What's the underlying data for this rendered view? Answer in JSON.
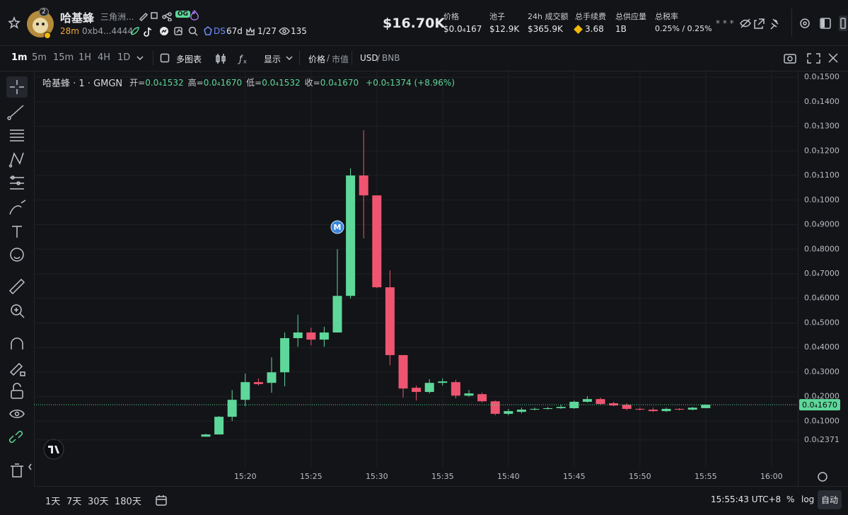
{
  "header": {
    "name": "哈基蜂",
    "subtitle": "三角洲...",
    "badge": "OG",
    "rank": "2",
    "age": "28m",
    "address": "0xb4...4444",
    "ds": "DS",
    "ds_age": "67d",
    "holders": "1/27",
    "views": "135",
    "market_cap": "$16.70K",
    "stats": [
      {
        "label": "价格",
        "value": "$0.0₄167"
      },
      {
        "label": "池子",
        "value": "$12.9K"
      },
      {
        "label": "24h 成交额",
        "value": "$365.9K"
      },
      {
        "label": "总手续费",
        "value": "3.68"
      },
      {
        "label": "总供应量",
        "value": "1B"
      },
      {
        "label": "总税率",
        "value": "0.25% / 0.25%"
      }
    ],
    "stars": "* * *"
  },
  "toolbar": {
    "intervals": [
      "1m",
      "5m",
      "15m",
      "1H",
      "4H",
      "1D"
    ],
    "multi_chart": "多图表",
    "display": "显示",
    "price": "价格",
    "sep": "/",
    "mcap": "市值",
    "usd": "USD",
    "bnb": "BNB"
  },
  "legend": {
    "symbol": "哈基蜂 · 1 · GMGN",
    "items": [
      {
        "label": "开=",
        "value": "0.0₄1532"
      },
      {
        "label": "高=",
        "value": "0.0₄1670"
      },
      {
        "label": "低=",
        "value": "0.0₄1532"
      },
      {
        "label": "收=",
        "value": "0.0₄1670"
      }
    ],
    "change": "+0.0₅1374 (+8.96%)"
  },
  "chart_data": {
    "type": "candlestick",
    "categories": [
      null,
      null,
      null,
      "15:20",
      null,
      null,
      null,
      null,
      "15:25",
      null,
      null,
      null,
      null,
      "15:30",
      null,
      null,
      null,
      null,
      "15:35",
      null,
      null,
      null,
      null,
      "15:40",
      null,
      null,
      null,
      null,
      "15:45",
      null,
      null,
      null,
      null,
      "15:50",
      null,
      null,
      null,
      null,
      "15:55",
      null,
      null,
      null,
      null,
      "16:00"
    ],
    "open": [
      3.7e-06,
      4.6e-06,
      1.18e-05,
      1.87e-05,
      2.59e-05,
      2.56e-05,
      2.99e-05,
      4.38e-05,
      4.61e-05,
      4.32e-05,
      4.61e-05,
      6.1e-05,
      0.00011,
      0.0001019,
      6.45e-05,
      3.69e-05,
      2.36e-05,
      2.19e-05,
      2.56e-05,
      2.59e-05,
      2.04e-05,
      2.1e-05,
      1.81e-05,
      1.3e-05,
      1.38e-05,
      1.47e-05,
      1.5e-05,
      1.53e-05,
      1.53e-05,
      1.79e-05,
      1.9e-05,
      1.73e-05,
      1.67e-05,
      1.5e-05,
      1.47e-05,
      1.41e-05,
      1.5e-05,
      1.47e-05,
      1.532e-05,
      null,
      null,
      null,
      null,
      null
    ],
    "high": [
      4.9e-06,
      1.21e-05,
      2.27e-05,
      2.94e-05,
      2.74e-05,
      3.6e-05,
      4.61e-05,
      5.33e-05,
      4.81e-05,
      4.84e-05,
      8e-05,
      0.0001129,
      0.0001284,
      0.0001019,
      7.14e-05,
      3.69e-05,
      2.45e-05,
      2.71e-05,
      2.74e-05,
      2.68e-05,
      2.27e-05,
      2.16e-05,
      1.84e-05,
      1.5e-05,
      1.55e-05,
      1.55e-05,
      1.58e-05,
      1.67e-05,
      1.84e-05,
      2.02e-05,
      1.96e-05,
      1.79e-05,
      1.73e-05,
      1.55e-05,
      1.55e-05,
      1.55e-05,
      1.53e-05,
      1.58e-05,
      1.67e-05,
      null,
      null,
      null,
      null,
      null
    ],
    "low": [
      3.7e-06,
      4.6e-06,
      1.01e-05,
      1.61e-05,
      2.45e-05,
      2.16e-05,
      2.42e-05,
      4.03e-05,
      4.09e-05,
      4.03e-05,
      4.61e-05,
      5.99e-05,
      8.44e-05,
      6.42e-05,
      3.28e-05,
      1.96e-05,
      1.84e-05,
      2.13e-05,
      2.45e-05,
      1.93e-05,
      1.99e-05,
      1.76e-05,
      1.24e-05,
      1.24e-05,
      1.32e-05,
      1.44e-05,
      1.47e-05,
      1.5e-05,
      1.5e-05,
      1.76e-05,
      1.67e-05,
      1.61e-05,
      1.44e-05,
      1.44e-05,
      1.38e-05,
      1.38e-05,
      1.44e-05,
      1.44e-05,
      1.532e-05,
      null,
      null,
      null,
      null,
      null
    ],
    "close": [
      4.6e-06,
      1.18e-05,
      1.87e-05,
      2.59e-05,
      2.51e-05,
      2.99e-05,
      4.38e-05,
      4.61e-05,
      4.32e-05,
      4.61e-05,
      6.1e-05,
      0.00011,
      0.0001019,
      6.45e-05,
      3.69e-05,
      2.33e-05,
      2.19e-05,
      2.56e-05,
      2.62e-05,
      2.04e-05,
      2.13e-05,
      1.81e-05,
      1.3e-05,
      1.41e-05,
      1.47e-05,
      1.5e-05,
      1.53e-05,
      1.58e-05,
      1.79e-05,
      1.9e-05,
      1.7e-05,
      1.64e-05,
      1.5e-05,
      1.47e-05,
      1.41e-05,
      1.5e-05,
      1.47e-05,
      1.55e-05,
      1.67e-05,
      null,
      null,
      null,
      null,
      null
    ],
    "up_color": "#5ed79a",
    "down_color": "#ef5470",
    "ylim": [
      -8.6e-06,
      0.0001532
    ],
    "yticks": [
      {
        "value": 0.00015,
        "label": "0.0₃1500"
      },
      {
        "value": 0.00014,
        "label": "0.0₃1400"
      },
      {
        "value": 0.00013,
        "label": "0.0₃1300"
      },
      {
        "value": 0.00012,
        "label": "0.0₃1200"
      },
      {
        "value": 0.00011,
        "label": "0.0₃1100"
      },
      {
        "value": 0.0001,
        "label": "0.0₃1000"
      },
      {
        "value": 9e-05,
        "label": "0.0₄9000"
      },
      {
        "value": 8e-05,
        "label": "0.0₄8000"
      },
      {
        "value": 7e-05,
        "label": "0.0₄7000"
      },
      {
        "value": 6e-05,
        "label": "0.0₄6000"
      },
      {
        "value": 5e-05,
        "label": "0.0₄5000"
      },
      {
        "value": 4e-05,
        "label": "0.0₄4000"
      },
      {
        "value": 3e-05,
        "label": "0.0₄3000"
      },
      {
        "value": 2e-05,
        "label": "0.0₄2000"
      },
      {
        "value": 1e-05,
        "label": "0.0₄1000"
      },
      {
        "value": 2.371e-06,
        "label": "0.0₅2371"
      }
    ],
    "grid": true,
    "last_price": {
      "value": 1.67e-05,
      "label": "0.0₄1670"
    },
    "marker_label": "M"
  },
  "footer": {
    "ranges": [
      "1天",
      "7天",
      "30天",
      "180天"
    ],
    "clock": "15:55:43 UTC+8",
    "percent": "%",
    "log": "log",
    "auto": "自动"
  }
}
